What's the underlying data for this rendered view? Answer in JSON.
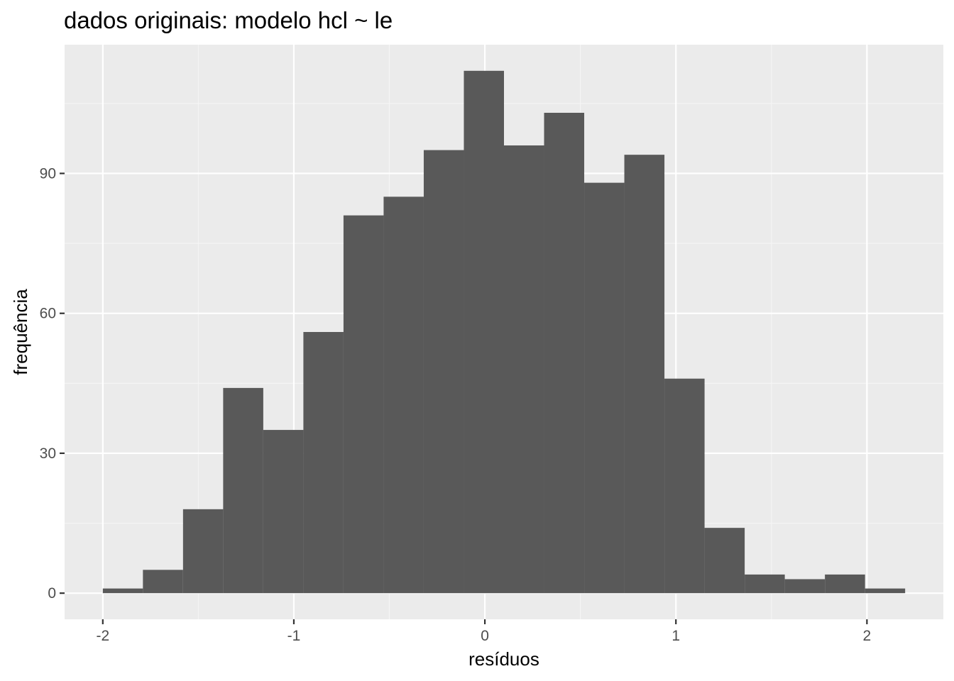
{
  "chart_data": {
    "type": "bar",
    "title": "dados originais: modelo hcl ~ le",
    "xlabel": "resíduos",
    "ylabel": "frequência",
    "xlim": [
      -2.2,
      2.4
    ],
    "ylim": [
      -5.6,
      117.6
    ],
    "x_ticks": [
      -2,
      -1,
      0,
      1,
      2
    ],
    "x_tick_labels": [
      "-2",
      "-1",
      "0",
      "1",
      "2"
    ],
    "y_ticks": [
      0,
      30,
      60,
      90
    ],
    "y_tick_labels": [
      "0",
      "30",
      "60",
      "90"
    ],
    "grid": true,
    "bin_width": 0.21,
    "bins": [
      {
        "x0": -2.0,
        "x1": -1.79,
        "count": 1
      },
      {
        "x0": -1.79,
        "x1": -1.58,
        "count": 5
      },
      {
        "x0": -1.58,
        "x1": -1.37,
        "count": 18
      },
      {
        "x0": -1.37,
        "x1": -1.16,
        "count": 44
      },
      {
        "x0": -1.16,
        "x1": -0.95,
        "count": 35
      },
      {
        "x0": -0.95,
        "x1": -0.74,
        "count": 56
      },
      {
        "x0": -0.74,
        "x1": -0.53,
        "count": 81
      },
      {
        "x0": -0.53,
        "x1": -0.32,
        "count": 85
      },
      {
        "x0": -0.32,
        "x1": -0.11,
        "count": 95
      },
      {
        "x0": -0.11,
        "x1": 0.1,
        "count": 112
      },
      {
        "x0": 0.1,
        "x1": 0.31,
        "count": 96
      },
      {
        "x0": 0.31,
        "x1": 0.52,
        "count": 103
      },
      {
        "x0": 0.52,
        "x1": 0.73,
        "count": 88
      },
      {
        "x0": 0.73,
        "x1": 0.94,
        "count": 94
      },
      {
        "x0": 0.94,
        "x1": 1.15,
        "count": 46
      },
      {
        "x0": 1.15,
        "x1": 1.36,
        "count": 14
      },
      {
        "x0": 1.36,
        "x1": 1.57,
        "count": 4
      },
      {
        "x0": 1.57,
        "x1": 1.78,
        "count": 3
      },
      {
        "x0": 1.78,
        "x1": 1.99,
        "count": 4
      },
      {
        "x0": 1.99,
        "x1": 2.2,
        "count": 1
      }
    ],
    "colors": {
      "panel_background": "#ebebeb",
      "grid_major": "#ffffff",
      "grid_minor": "#f5f5f5",
      "bar_fill": "#595959",
      "tick_text": "#4d4d4d",
      "tick_mark": "#333333",
      "text": "#000000"
    }
  }
}
